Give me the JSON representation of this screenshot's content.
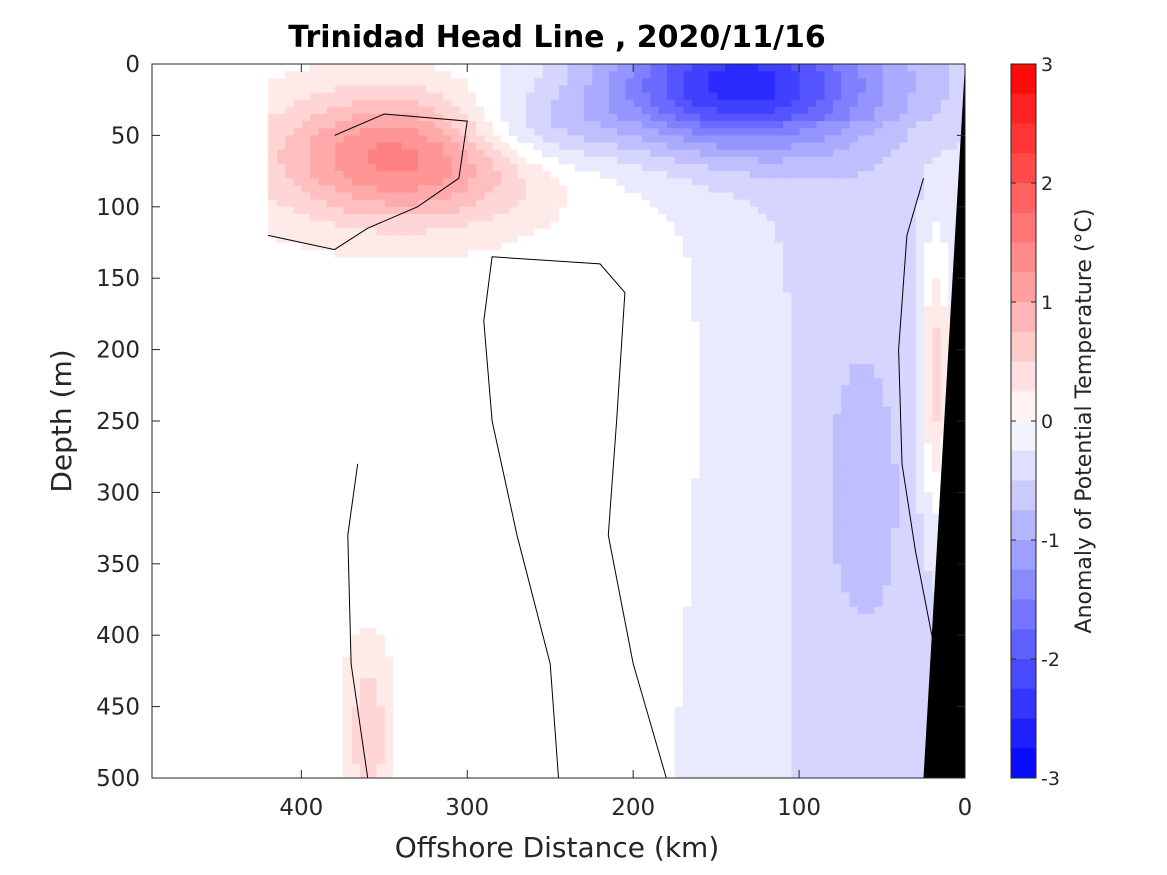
{
  "chart_data": {
    "type": "contour",
    "title": "Trinidad Head Line , 2020/11/16",
    "xlabel": "Offshore Distance (km)",
    "ylabel": "Depth (m)",
    "xlim": [
      490,
      0
    ],
    "ylim": [
      500,
      0
    ],
    "x_ticks": [
      400,
      300,
      200,
      100,
      0
    ],
    "y_ticks": [
      0,
      50,
      100,
      150,
      200,
      250,
      300,
      350,
      400,
      450,
      500
    ],
    "x_reversed": true,
    "y_reversed": true,
    "data_coverage_x": [
      0,
      420
    ],
    "colorbar": {
      "label": "Anomaly of Potential Temperature (°C)",
      "range": [
        -3,
        3
      ],
      "step": 0.25,
      "ticks": [
        -3,
        -2,
        -1,
        0,
        1,
        2,
        3
      ],
      "colors": {
        "min": "#0000ff",
        "zero": "#ffffff",
        "max": "#ff0000"
      }
    },
    "features": [
      {
        "type": "warm_core",
        "x_km": 340,
        "depth_m": 65,
        "peak_anomaly": 1.5
      },
      {
        "type": "cold_core",
        "x_km": 140,
        "depth_m": 15,
        "peak_anomaly": -2.0
      },
      {
        "type": "cool_plume",
        "x_range_km": [
          20,
          170
        ],
        "depth_range_m": [
          0,
          500
        ],
        "anomaly": -0.5
      },
      {
        "type": "weak_warm_shelf",
        "x_km": 18,
        "depth_range_m": [
          140,
          300
        ],
        "anomaly": 0.4
      },
      {
        "type": "weak_warm_deep",
        "x_km": 360,
        "depth_range_m": [
          400,
          500
        ],
        "anomaly": 0.3
      }
    ],
    "bathymetry": {
      "fill": "#000000",
      "depth_at_km": [
        [
          0,
          0
        ],
        [
          25,
          500
        ]
      ]
    },
    "zero_contour": {
      "color": "#000000"
    },
    "grid": false
  }
}
